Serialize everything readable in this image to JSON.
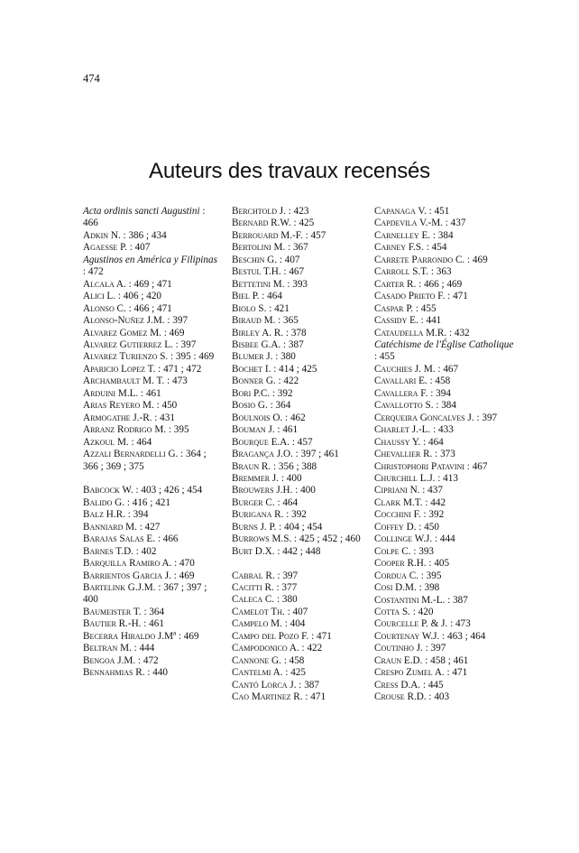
{
  "page_number": "474",
  "title": "Auteurs des travaux recensés",
  "columns": [
    [
      {
        "name": "Acta ordinis sancti Augustini",
        "refs": " : 466",
        "italic": true
      },
      {
        "name": "Adkin N.",
        "refs": " : 386 ; 434"
      },
      {
        "name": "Agaesse P.",
        "refs": " : 407"
      },
      {
        "name": "Agustinos en América y Filipinas",
        "refs": " : 472",
        "italic": true
      },
      {
        "name": "Alcala A.",
        "refs": " : 469 ; 471"
      },
      {
        "name": "Alici L.",
        "refs": " : 406 ; 420"
      },
      {
        "name": "Alonso C.",
        "refs": " : 466 ; 471"
      },
      {
        "name": "Alonso-Nuñez J.M.",
        "refs": " : 397"
      },
      {
        "name": "Alvarez Gomez M.",
        "refs": " : 469"
      },
      {
        "name": "Alvarez Gutierrez L.",
        "refs": " : 397"
      },
      {
        "name": "Alvarez Turienzo S.",
        "refs": " : 395 : 469"
      },
      {
        "name": "Aparicio Lopez T.",
        "refs": " : 471 ; 472"
      },
      {
        "name": "Archambault M. T.",
        "refs": " : 473"
      },
      {
        "name": "Arduini M.L.",
        "refs": " : 461"
      },
      {
        "name": "Arias Reyero M.",
        "refs": " : 450"
      },
      {
        "name": "Armogathe J.-R.",
        "refs": " : 431"
      },
      {
        "name": "Arranz Rodrigo M.",
        "refs": " : 395"
      },
      {
        "name": "Azkoul M.",
        "refs": " : 464"
      },
      {
        "name": "Azzali Bernardelli G.",
        "refs": " : 364 ; 366 ; 369 ; 375"
      },
      {
        "gap": true
      },
      {
        "name": "Babcock W.",
        "refs": " : 403 ; 426 ; 454"
      },
      {
        "name": "Balido G.",
        "refs": " : 416 ; 421"
      },
      {
        "name": "Balz H.R.",
        "refs": " : 394"
      },
      {
        "name": "Banniard M.",
        "refs": " : 427"
      },
      {
        "name": "Barajas Salas E.",
        "refs": " : 466"
      },
      {
        "name": "Barnes T.D.",
        "refs": " : 402"
      },
      {
        "name": "Barquilla Ramiro A.",
        "refs": " : 470"
      },
      {
        "name": "Barrientos Garcia J.",
        "refs": " : 469"
      },
      {
        "name": "Bartelink G.J.M.",
        "refs": " : 367 ; 397 ; 400"
      },
      {
        "name": "Baumeister T.",
        "refs": " : 364"
      },
      {
        "name": "Bautier R.-H.",
        "refs": " : 461"
      },
      {
        "name": "Becerra Hiraldo J.Mª",
        "refs": " : 469"
      },
      {
        "name": "Beltran M.",
        "refs": " : 444"
      },
      {
        "name": "Bengoa J.M.",
        "refs": " : 472"
      },
      {
        "name": "Bennahmias R.",
        "refs": " : 440"
      }
    ],
    [
      {
        "name": "Berchtold J.",
        "refs": " : 423"
      },
      {
        "name": "Bernard R.W.",
        "refs": " : 425"
      },
      {
        "name": "Berrouard M.-F.",
        "refs": " : 457"
      },
      {
        "name": "Bertolini M.",
        "refs": " : 367"
      },
      {
        "name": "Beschin G.",
        "refs": " : 407"
      },
      {
        "name": "Bestul T.H.",
        "refs": " : 467"
      },
      {
        "name": "Bettetini M.",
        "refs": " : 393"
      },
      {
        "name": "Biel P.",
        "refs": " : 464"
      },
      {
        "name": "Biolo S.",
        "refs": " : 421"
      },
      {
        "name": "Biraud M.",
        "refs": " : 365"
      },
      {
        "name": "Birley A. R.",
        "refs": " : 378"
      },
      {
        "name": "Bisbee G.A.",
        "refs": " : 387"
      },
      {
        "name": "Blumer J.",
        "refs": " : 380"
      },
      {
        "name": "Bochet I.",
        "refs": " : 414 ; 425"
      },
      {
        "name": "Bonner G.",
        "refs": " : 422"
      },
      {
        "name": "Bori P.C.",
        "refs": " : 392"
      },
      {
        "name": "Bosio G.",
        "refs": " : 364"
      },
      {
        "name": "Boulnois O.",
        "refs": " : 462"
      },
      {
        "name": "Bouman J.",
        "refs": " : 461"
      },
      {
        "name": "Bourque E.A.",
        "refs": " : 457"
      },
      {
        "name": "Bragança J.O.",
        "refs": " : 397 ; 461"
      },
      {
        "name": "Braun R.",
        "refs": " : 356 ; 388"
      },
      {
        "name": "Bremmer J.",
        "refs": " : 400"
      },
      {
        "name": "Brouwers J.H.",
        "refs": " : 400"
      },
      {
        "name": "Burger C.",
        "refs": " : 464"
      },
      {
        "name": "Burigana R.",
        "refs": " : 392"
      },
      {
        "name": "Burns J. P.",
        "refs": " : 404 ; 454"
      },
      {
        "name": "Burrows M.S.",
        "refs": " : 425 ; 452 ; 460"
      },
      {
        "name": "Burt D.X.",
        "refs": " : 442 ; 448"
      },
      {
        "gap": true
      },
      {
        "name": "Cabral R.",
        "refs": " : 397"
      },
      {
        "name": "Cacitti R.",
        "refs": " : 377"
      },
      {
        "name": "Caleca C.",
        "refs": " : 380"
      },
      {
        "name": "Camelot Th.",
        "refs": " : 407"
      },
      {
        "name": "Campelo M.",
        "refs": " : 404"
      },
      {
        "name": "Campo del Pozo F.",
        "refs": " : 471"
      },
      {
        "name": "Campodonico A.",
        "refs": " : 422"
      },
      {
        "name": "Cannone G.",
        "refs": " : 458"
      },
      {
        "name": "Cantelmi A.",
        "refs": " : 425"
      },
      {
        "name": "Cantó Lorca J.",
        "refs": " : 387"
      },
      {
        "name": "Cao Martinez R.",
        "refs": " : 471"
      }
    ],
    [
      {
        "name": "Capanaga  V.",
        "refs": " : 451"
      },
      {
        "name": "Capdevila V.-M.",
        "refs": " : 437"
      },
      {
        "name": "Carnelley E.",
        "refs": " : 384"
      },
      {
        "name": "Carney F.S.",
        "refs": " : 454"
      },
      {
        "name": "Carrete Parrondo C.",
        "refs": " : 469"
      },
      {
        "name": "Carroll S.T.",
        "refs": " : 363"
      },
      {
        "name": "Carter R.",
        "refs": " : 466 ; 469"
      },
      {
        "name": "Casado Prieto F.",
        "refs": " : 471"
      },
      {
        "name": "Caspar P.",
        "refs": " : 455"
      },
      {
        "name": "Cassidy E.",
        "refs": " : 441"
      },
      {
        "name": "Cataudella M.R.",
        "refs": " : 432"
      },
      {
        "name": "Catéchisme de l'Église Catholique",
        "refs": " : 455",
        "italic": true
      },
      {
        "name": "Cauchies J. M.",
        "refs": " : 467"
      },
      {
        "name": "Cavallari E.",
        "refs": " : 458"
      },
      {
        "name": "Cavallera F.",
        "refs": " : 394"
      },
      {
        "name": "Cavallotto S.",
        "refs": " : 384"
      },
      {
        "name": "Cerqueira Goncalves J.",
        "refs": " : 397"
      },
      {
        "name": "Charlet J.-L.",
        "refs": " : 433"
      },
      {
        "name": "Chaussy Y.",
        "refs": " : 464"
      },
      {
        "name": "Chevallier R.",
        "refs": " : 373"
      },
      {
        "name": "Christophori Patavini",
        "refs": " : 467"
      },
      {
        "name": "Churchill L.J.",
        "refs": " : 413"
      },
      {
        "name": "Cipriani N.",
        "refs": " : 437"
      },
      {
        "name": "Clark M.T.",
        "refs": " : 442"
      },
      {
        "name": "Cocchini F.",
        "refs": " : 392"
      },
      {
        "name": "Coffey D.",
        "refs": " : 450"
      },
      {
        "name": "Collinge W.J.",
        "refs": " : 444"
      },
      {
        "name": "Colpe C.",
        "refs": " : 393"
      },
      {
        "name": "Cooper R.H.",
        "refs": " : 405"
      },
      {
        "name": "Cordua C.",
        "refs": " : 395"
      },
      {
        "name": "Cosi D.M.",
        "refs": " : 398"
      },
      {
        "name": "Costantini M.-L.",
        "refs": " : 387"
      },
      {
        "name": "Cotta S.",
        "refs": " : 420"
      },
      {
        "name": "Courcelle P. & J.",
        "refs": " : 473"
      },
      {
        "name": "Courtenay W.J.",
        "refs": " : 463 ; 464"
      },
      {
        "name": "Coutinho J.",
        "refs": " : 397"
      },
      {
        "name": "Craun E.D.",
        "refs": " : 458 ; 461"
      },
      {
        "name": "Crespo Zumel A.",
        "refs": " : 471"
      },
      {
        "name": "Cress D.A.",
        "refs": " : 445"
      },
      {
        "name": "Crouse R.D.",
        "refs": " : 403"
      }
    ]
  ]
}
